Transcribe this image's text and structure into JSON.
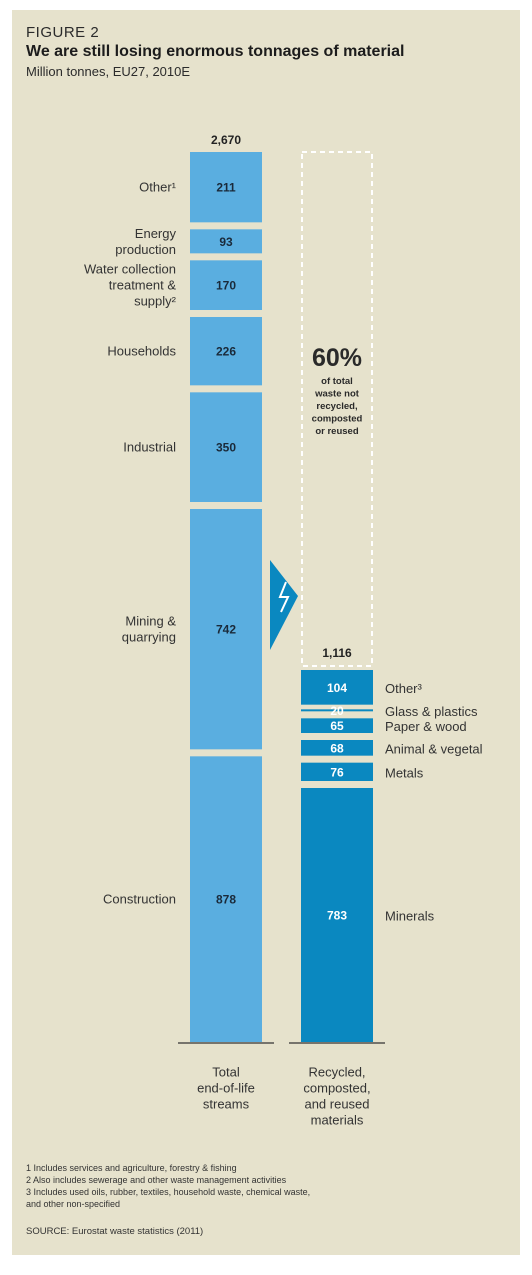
{
  "figure_label": "FIGURE 2",
  "title": "We are still losing enormous tonnages of material",
  "subtitle": "Million tonnes, EU27, 2010E",
  "callout": {
    "percent": "60%",
    "lines": [
      "of total",
      "waste not",
      "recycled,",
      "composted",
      "or reused"
    ]
  },
  "colors": {
    "left_bar": "#5aaee0",
    "right_bar": "#0a88c0",
    "background": "#e6e2cc"
  },
  "chart_data": {
    "type": "bar",
    "stacked": true,
    "categories": [
      "Total end-of-life streams",
      "Recycled, composted, and reused materials"
    ],
    "category_label_lines": [
      [
        "Total",
        "end-of-life",
        "streams"
      ],
      [
        "Recycled,",
        "composted,",
        "and reused",
        "materials"
      ]
    ],
    "totals": [
      2670,
      1116
    ],
    "total_labels": [
      "2,670",
      "1,116"
    ],
    "series": [
      {
        "bar": "Total end-of-life streams",
        "segments": [
          {
            "label_lines": [
              "Construction"
            ],
            "value": 878
          },
          {
            "label_lines": [
              "Mining &",
              "quarrying"
            ],
            "value": 742
          },
          {
            "label_lines": [
              "Industrial"
            ],
            "value": 350
          },
          {
            "label_lines": [
              "Households"
            ],
            "value": 226
          },
          {
            "label_lines": [
              "Water collection",
              "treatment &",
              "supply²"
            ],
            "value": 170
          },
          {
            "label_lines": [
              "Energy",
              "production"
            ],
            "value": 93
          },
          {
            "label_lines": [
              "Other¹"
            ],
            "value": 211
          }
        ]
      },
      {
        "bar": "Recycled, composted, and reused materials",
        "segments": [
          {
            "label_lines": [
              "Minerals"
            ],
            "value": 783
          },
          {
            "label_lines": [
              "Metals"
            ],
            "value": 76
          },
          {
            "label_lines": [
              "Animal & vegetal"
            ],
            "value": 68
          },
          {
            "label_lines": [
              "Paper & wood"
            ],
            "value": 65
          },
          {
            "label_lines": [
              "Glass & plastics"
            ],
            "value": 20
          },
          {
            "label_lines": [
              "Other³"
            ],
            "value": 104
          }
        ]
      }
    ]
  },
  "footnotes": [
    "1  Includes services and agriculture, forestry & fishing",
    "2  Also includes sewerage and other waste management activities",
    "3  Includes used oils, rubber, textiles, household waste, chemical waste,",
    "    and other non-specified"
  ],
  "source": "SOURCE: Eurostat waste statistics (2011)"
}
